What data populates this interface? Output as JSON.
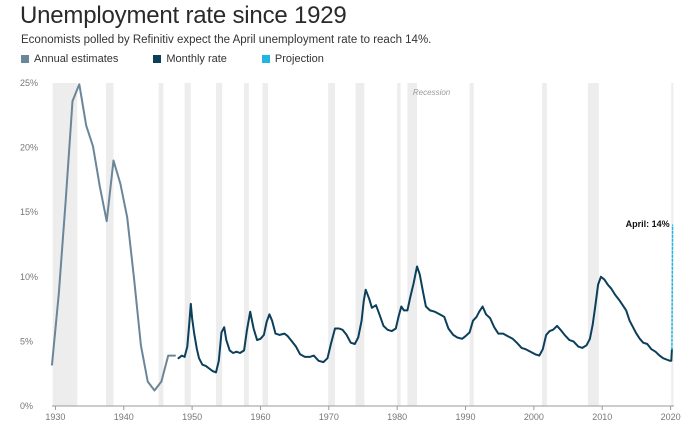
{
  "header": {
    "title": "Unemployment rate since 1929",
    "subtitle": "Economists polled by Refinitiv expect the April unemployment rate to reach 14%."
  },
  "legend": [
    {
      "label": "Annual estimates",
      "color": "#6b8599"
    },
    {
      "label": "Monthly rate",
      "color": "#0c3f5a"
    },
    {
      "label": "Projection",
      "color": "#1fb5e5"
    }
  ],
  "chart_data": {
    "type": "line",
    "title": "Unemployment rate since 1929",
    "xlabel": "",
    "ylabel": "",
    "xlim": [
      1929.5,
      2020.5
    ],
    "ylim": [
      0,
      25
    ],
    "y_ticks": [
      0,
      5,
      10,
      15,
      20,
      25
    ],
    "y_tick_labels": [
      "0%",
      "5%",
      "10%",
      "15%",
      "20%",
      "25%"
    ],
    "x_ticks": [
      1930,
      1940,
      1950,
      1960,
      1970,
      1980,
      1990,
      2000,
      2010,
      2020
    ],
    "x_tick_labels": [
      "1930",
      "1940",
      "1950",
      "1960",
      "1970",
      "1980",
      "1990",
      "2000",
      "2010",
      "2020"
    ],
    "grid": false,
    "legend_position": "top-left",
    "recession_label": "Recession",
    "recessions": [
      [
        1929.6,
        1933.2
      ],
      [
        1937.4,
        1938.5
      ],
      [
        1945.1,
        1945.8
      ],
      [
        1948.9,
        1949.8
      ],
      [
        1953.5,
        1954.4
      ],
      [
        1957.6,
        1958.3
      ],
      [
        1960.3,
        1961.1
      ],
      [
        1969.9,
        1970.9
      ],
      [
        1973.9,
        1975.2
      ],
      [
        1980.0,
        1980.5
      ],
      [
        1981.5,
        1982.9
      ],
      [
        1990.6,
        1991.2
      ],
      [
        2001.2,
        2001.9
      ],
      [
        2007.9,
        2009.5
      ],
      [
        2020.1,
        2020.4
      ]
    ],
    "series": [
      {
        "name": "Annual estimates",
        "color": "#6b8599",
        "points": [
          [
            1929.5,
            3.2
          ],
          [
            1930.5,
            8.7
          ],
          [
            1931.5,
            15.9
          ],
          [
            1932.5,
            23.6
          ],
          [
            1933.5,
            24.9
          ],
          [
            1934.5,
            21.7
          ],
          [
            1935.5,
            20.1
          ],
          [
            1936.5,
            17.0
          ],
          [
            1937.5,
            14.3
          ],
          [
            1938.5,
            19.0
          ],
          [
            1939.5,
            17.2
          ],
          [
            1940.5,
            14.6
          ],
          [
            1941.5,
            9.9
          ],
          [
            1942.5,
            4.7
          ],
          [
            1943.5,
            1.9
          ],
          [
            1944.5,
            1.2
          ],
          [
            1945.5,
            1.9
          ],
          [
            1946.5,
            3.9
          ],
          [
            1947.5,
            3.9
          ]
        ]
      },
      {
        "name": "Monthly rate",
        "color": "#0c3f5a",
        "points": [
          [
            1948.0,
            3.7
          ],
          [
            1948.5,
            3.9
          ],
          [
            1948.9,
            3.8
          ],
          [
            1949.3,
            4.6
          ],
          [
            1949.6,
            6.5
          ],
          [
            1949.8,
            7.9
          ],
          [
            1950.0,
            6.8
          ],
          [
            1950.3,
            5.6
          ],
          [
            1950.7,
            4.4
          ],
          [
            1951.0,
            3.7
          ],
          [
            1951.5,
            3.2
          ],
          [
            1952.0,
            3.1
          ],
          [
            1952.5,
            2.9
          ],
          [
            1953.0,
            2.7
          ],
          [
            1953.5,
            2.6
          ],
          [
            1953.9,
            3.5
          ],
          [
            1954.3,
            5.7
          ],
          [
            1954.7,
            6.1
          ],
          [
            1955.0,
            5.1
          ],
          [
            1955.5,
            4.3
          ],
          [
            1956.0,
            4.1
          ],
          [
            1956.5,
            4.2
          ],
          [
            1957.0,
            4.1
          ],
          [
            1957.6,
            4.3
          ],
          [
            1958.0,
            5.8
          ],
          [
            1958.5,
            7.3
          ],
          [
            1959.0,
            6.0
          ],
          [
            1959.5,
            5.1
          ],
          [
            1960.0,
            5.2
          ],
          [
            1960.5,
            5.5
          ],
          [
            1960.9,
            6.5
          ],
          [
            1961.3,
            7.1
          ],
          [
            1961.7,
            6.6
          ],
          [
            1962.2,
            5.6
          ],
          [
            1962.8,
            5.5
          ],
          [
            1963.5,
            5.6
          ],
          [
            1964.0,
            5.4
          ],
          [
            1964.6,
            5.0
          ],
          [
            1965.2,
            4.6
          ],
          [
            1965.8,
            4.0
          ],
          [
            1966.5,
            3.8
          ],
          [
            1967.2,
            3.8
          ],
          [
            1967.8,
            3.9
          ],
          [
            1968.5,
            3.5
          ],
          [
            1969.2,
            3.4
          ],
          [
            1969.8,
            3.7
          ],
          [
            1970.3,
            4.8
          ],
          [
            1970.9,
            6.0
          ],
          [
            1971.5,
            6.0
          ],
          [
            1972.0,
            5.9
          ],
          [
            1972.6,
            5.5
          ],
          [
            1973.2,
            4.9
          ],
          [
            1973.8,
            4.8
          ],
          [
            1974.3,
            5.3
          ],
          [
            1974.8,
            6.6
          ],
          [
            1975.1,
            8.1
          ],
          [
            1975.4,
            9.0
          ],
          [
            1975.9,
            8.3
          ],
          [
            1976.3,
            7.6
          ],
          [
            1976.9,
            7.8
          ],
          [
            1977.4,
            7.1
          ],
          [
            1978.0,
            6.2
          ],
          [
            1978.6,
            5.9
          ],
          [
            1979.2,
            5.8
          ],
          [
            1979.8,
            6.0
          ],
          [
            1980.2,
            6.9
          ],
          [
            1980.6,
            7.7
          ],
          [
            1981.0,
            7.4
          ],
          [
            1981.5,
            7.4
          ],
          [
            1981.9,
            8.4
          ],
          [
            1982.4,
            9.5
          ],
          [
            1982.9,
            10.8
          ],
          [
            1983.3,
            10.2
          ],
          [
            1983.8,
            8.8
          ],
          [
            1984.2,
            7.7
          ],
          [
            1984.8,
            7.4
          ],
          [
            1985.5,
            7.3
          ],
          [
            1986.2,
            7.1
          ],
          [
            1986.9,
            6.9
          ],
          [
            1987.5,
            6.0
          ],
          [
            1988.2,
            5.5
          ],
          [
            1988.8,
            5.3
          ],
          [
            1989.5,
            5.2
          ],
          [
            1990.0,
            5.4
          ],
          [
            1990.6,
            5.7
          ],
          [
            1991.1,
            6.6
          ],
          [
            1991.6,
            6.9
          ],
          [
            1992.0,
            7.3
          ],
          [
            1992.5,
            7.7
          ],
          [
            1993.0,
            7.1
          ],
          [
            1993.6,
            6.8
          ],
          [
            1994.2,
            6.1
          ],
          [
            1994.8,
            5.6
          ],
          [
            1995.5,
            5.6
          ],
          [
            1996.2,
            5.4
          ],
          [
            1996.9,
            5.2
          ],
          [
            1997.5,
            4.9
          ],
          [
            1998.2,
            4.5
          ],
          [
            1998.8,
            4.4
          ],
          [
            1999.5,
            4.2
          ],
          [
            2000.2,
            4.0
          ],
          [
            2000.8,
            3.9
          ],
          [
            2001.3,
            4.4
          ],
          [
            2001.8,
            5.5
          ],
          [
            2002.3,
            5.8
          ],
          [
            2002.8,
            5.9
          ],
          [
            2003.4,
            6.2
          ],
          [
            2003.9,
            5.9
          ],
          [
            2004.5,
            5.5
          ],
          [
            2005.2,
            5.1
          ],
          [
            2005.8,
            5.0
          ],
          [
            2006.5,
            4.6
          ],
          [
            2007.1,
            4.5
          ],
          [
            2007.7,
            4.7
          ],
          [
            2008.2,
            5.2
          ],
          [
            2008.6,
            6.3
          ],
          [
            2009.0,
            7.8
          ],
          [
            2009.4,
            9.4
          ],
          [
            2009.8,
            10.0
          ],
          [
            2010.3,
            9.8
          ],
          [
            2010.8,
            9.4
          ],
          [
            2011.3,
            9.1
          ],
          [
            2011.9,
            8.6
          ],
          [
            2012.5,
            8.2
          ],
          [
            2013.0,
            7.8
          ],
          [
            2013.5,
            7.4
          ],
          [
            2014.0,
            6.6
          ],
          [
            2014.5,
            6.1
          ],
          [
            2015.0,
            5.6
          ],
          [
            2015.5,
            5.2
          ],
          [
            2016.0,
            4.9
          ],
          [
            2016.6,
            4.8
          ],
          [
            2017.2,
            4.4
          ],
          [
            2017.8,
            4.2
          ],
          [
            2018.4,
            3.9
          ],
          [
            2018.9,
            3.7
          ],
          [
            2019.4,
            3.6
          ],
          [
            2019.9,
            3.5
          ],
          [
            2020.1,
            3.5
          ],
          [
            2020.2,
            4.4
          ]
        ]
      },
      {
        "name": "Projection",
        "color": "#1fb5e5",
        "dashed": true,
        "points": [
          [
            2020.2,
            4.4
          ],
          [
            2020.3,
            14.0
          ]
        ]
      }
    ],
    "annotations": [
      {
        "text": "April: 14%",
        "x": 2020.3,
        "y": 14.0
      }
    ]
  }
}
